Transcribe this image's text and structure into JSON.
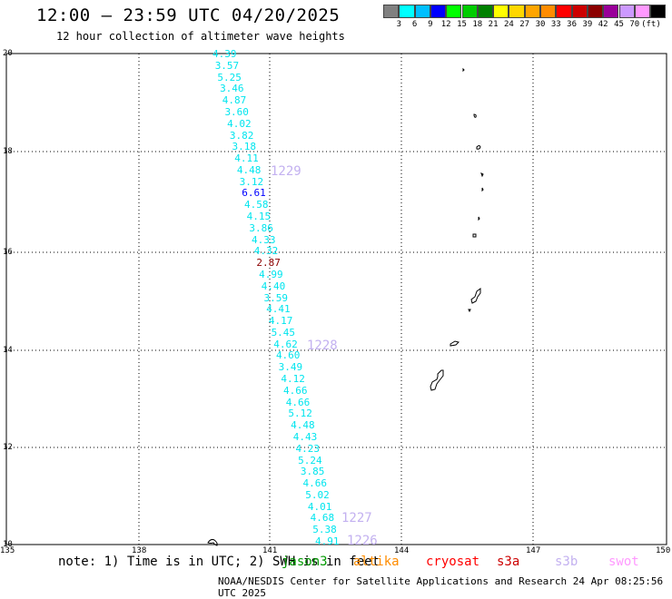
{
  "header": {
    "title": "12:00 – 23:59 UTC 04/20/2025",
    "subtitle": "12 hour collection of altimeter wave heights"
  },
  "colorbar": {
    "colors": [
      "#808080",
      "#00ffff",
      "#00bfff",
      "#0000ff",
      "#00ff00",
      "#00cc00",
      "#008000",
      "#ffff00",
      "#ffd700",
      "#ffa500",
      "#ff8c00",
      "#ff0000",
      "#cc0000",
      "#8b0000",
      "#990099",
      "#cc99ff",
      "#ff99ff",
      "#000000"
    ],
    "labels": [
      "3",
      "6",
      "9",
      "12",
      "15",
      "18",
      "21",
      "24",
      "27",
      "30",
      "33",
      "36",
      "39",
      "42",
      "45",
      "70",
      "(ft)"
    ]
  },
  "axes": {
    "lat_labels": [
      "20",
      "18",
      "16",
      "14",
      "12",
      "10"
    ],
    "lon_labels": [
      "135",
      "138",
      "141",
      "144",
      "147",
      "150"
    ]
  },
  "swh_values": [
    {
      "v": "4.39",
      "c": "#00e5ee"
    },
    {
      "v": "3.57",
      "c": "#00e5ee"
    },
    {
      "v": "5.25",
      "c": "#00e5ee"
    },
    {
      "v": "3.46",
      "c": "#00e5ee"
    },
    {
      "v": "4.87",
      "c": "#00e5ee"
    },
    {
      "v": "3.60",
      "c": "#00e5ee"
    },
    {
      "v": "4.02",
      "c": "#00e5ee"
    },
    {
      "v": "3.82",
      "c": "#00e5ee"
    },
    {
      "v": "3.18",
      "c": "#00e5ee"
    },
    {
      "v": "4.11",
      "c": "#00e5ee"
    },
    {
      "v": "4.48",
      "c": "#00e5ee"
    },
    {
      "v": "3.12",
      "c": "#00e5ee"
    },
    {
      "v": "6.61",
      "c": "#0000ff"
    },
    {
      "v": "4.58",
      "c": "#00e5ee"
    },
    {
      "v": "4.15",
      "c": "#00e5ee"
    },
    {
      "v": "3.86",
      "c": "#00e5ee"
    },
    {
      "v": "4.33",
      "c": "#00e5ee"
    },
    {
      "v": "4.32",
      "c": "#00e5ee"
    },
    {
      "v": "2.87",
      "c": "#8b0000"
    },
    {
      "v": "4.99",
      "c": "#00e5ee"
    },
    {
      "v": "4.40",
      "c": "#00e5ee"
    },
    {
      "v": "3.59",
      "c": "#00e5ee"
    },
    {
      "v": "4.41",
      "c": "#00e5ee"
    },
    {
      "v": "4.17",
      "c": "#00e5ee"
    },
    {
      "v": "5.45",
      "c": "#00e5ee"
    },
    {
      "v": "4.62",
      "c": "#00e5ee"
    },
    {
      "v": "4.60",
      "c": "#00e5ee"
    },
    {
      "v": "3.49",
      "c": "#00e5ee"
    },
    {
      "v": "4.12",
      "c": "#00e5ee"
    },
    {
      "v": "4.66",
      "c": "#00e5ee"
    },
    {
      "v": "4.66",
      "c": "#00e5ee"
    },
    {
      "v": "5.12",
      "c": "#00e5ee"
    },
    {
      "v": "4.48",
      "c": "#00e5ee"
    },
    {
      "v": "4.43",
      "c": "#00e5ee"
    },
    {
      "v": "4.23",
      "c": "#00e5ee"
    },
    {
      "v": "5.24",
      "c": "#00e5ee"
    },
    {
      "v": "3.85",
      "c": "#00e5ee"
    },
    {
      "v": "4.66",
      "c": "#00e5ee"
    },
    {
      "v": "5.02",
      "c": "#00e5ee"
    },
    {
      "v": "4.01",
      "c": "#00e5ee"
    },
    {
      "v": "4.68",
      "c": "#00e5ee"
    },
    {
      "v": "5.38",
      "c": "#00e5ee"
    },
    {
      "v": "4.91",
      "c": "#00e5ee"
    }
  ],
  "track_times": [
    "1229",
    "1228",
    "1227",
    "1226"
  ],
  "note": {
    "text": "note: 1) Time is in UTC; 2) SWH is in feet",
    "satellites": [
      {
        "name": "jason3",
        "color": "#009900"
      },
      {
        "name": "altika",
        "color": "#ff8c00"
      },
      {
        "name": "cryosat",
        "color": "#ff0000"
      },
      {
        "name": "s3a",
        "color": "#cc0000"
      },
      {
        "name": "s3b",
        "color": "#c3b1f0"
      },
      {
        "name": "swot",
        "color": "#ff99ff"
      }
    ]
  },
  "footer": {
    "credit": "NOAA/NESDIS Center for Satellite Applications and Research   24 Apr 08:25:56 UTC 2025"
  }
}
